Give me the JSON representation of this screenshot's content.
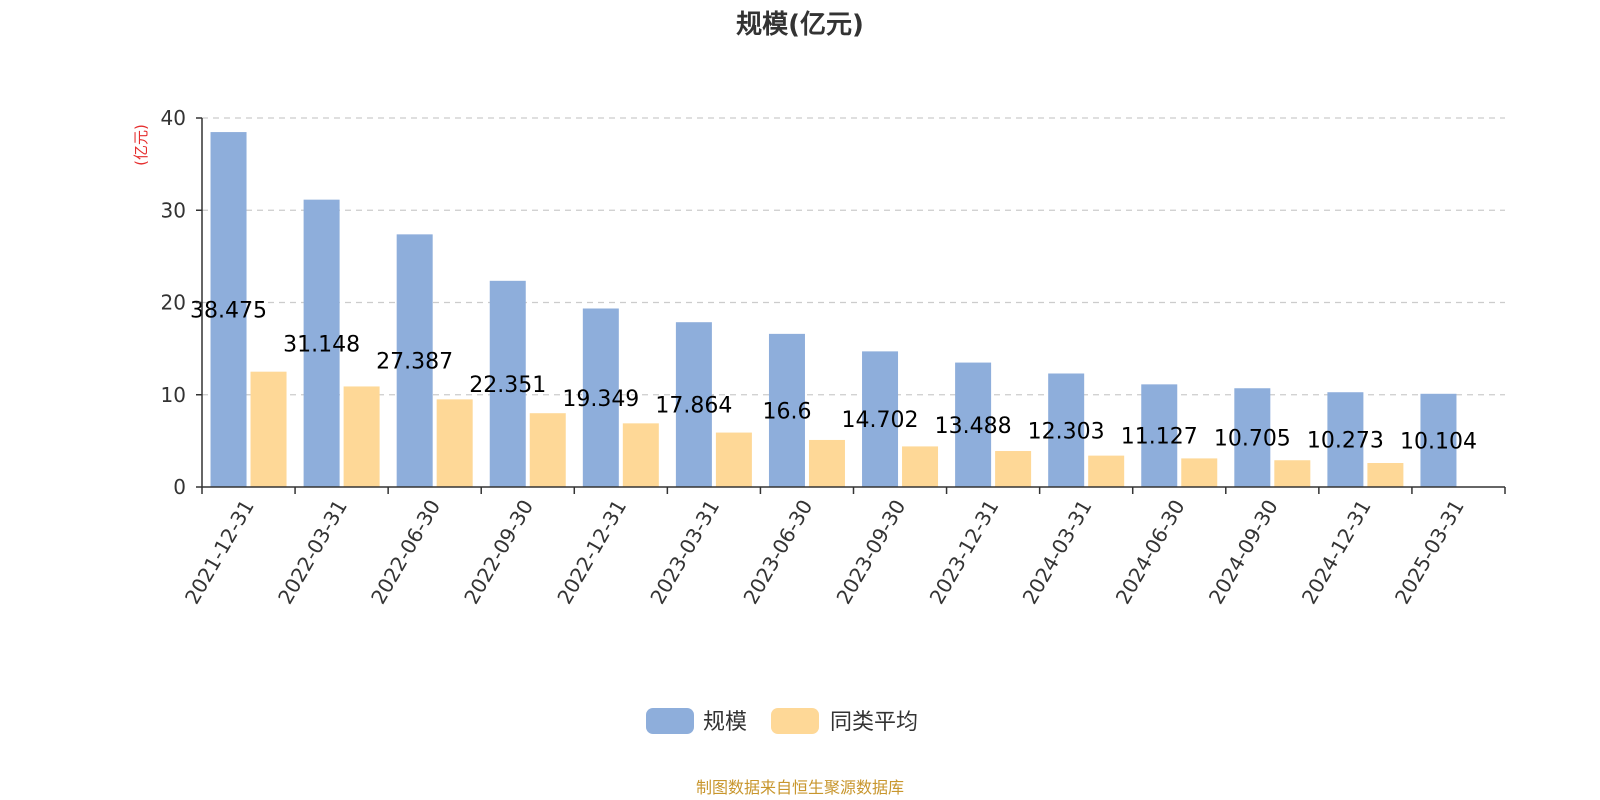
{
  "chart_data": {
    "type": "bar",
    "title": "规模(亿元)",
    "ylabel": "(亿元)",
    "ylim": [
      0,
      40
    ],
    "yticks": [
      "0",
      "10",
      "20",
      "30",
      "40"
    ],
    "categories": [
      "2021-12-31",
      "2022-03-31",
      "2022-06-30",
      "2022-09-30",
      "2022-12-31",
      "2023-03-31",
      "2023-06-30",
      "2023-09-30",
      "2023-12-31",
      "2024-03-31",
      "2024-06-30",
      "2024-09-30",
      "2024-12-31",
      "2025-03-31"
    ],
    "series": [
      {
        "name": "规模",
        "color": "#8eaedb",
        "values": [
          38.475,
          31.148,
          27.387,
          22.351,
          19.349,
          17.864,
          16.6,
          14.702,
          13.488,
          12.303,
          11.127,
          10.705,
          10.273,
          10.104
        ],
        "labels": [
          "38.475",
          "31.148",
          "27.387",
          "22.351",
          "19.349",
          "17.864",
          "16.6",
          "14.702",
          "13.488",
          "12.303",
          "11.127",
          "10.705",
          "10.273",
          "10.104"
        ]
      },
      {
        "name": "同类平均",
        "color": "#fed897",
        "values": [
          12.5,
          10.9,
          9.5,
          8.0,
          6.9,
          5.9,
          5.1,
          4.4,
          3.9,
          3.4,
          3.1,
          2.9,
          2.6,
          null
        ]
      }
    ],
    "grid": true,
    "legend": "bottom-center"
  },
  "colors": {
    "axis": "#333333",
    "grid": "#cccccc",
    "unit": "#e52e2e",
    "source": "#c8962d"
  },
  "source": "制图数据来自恒生聚源数据库"
}
